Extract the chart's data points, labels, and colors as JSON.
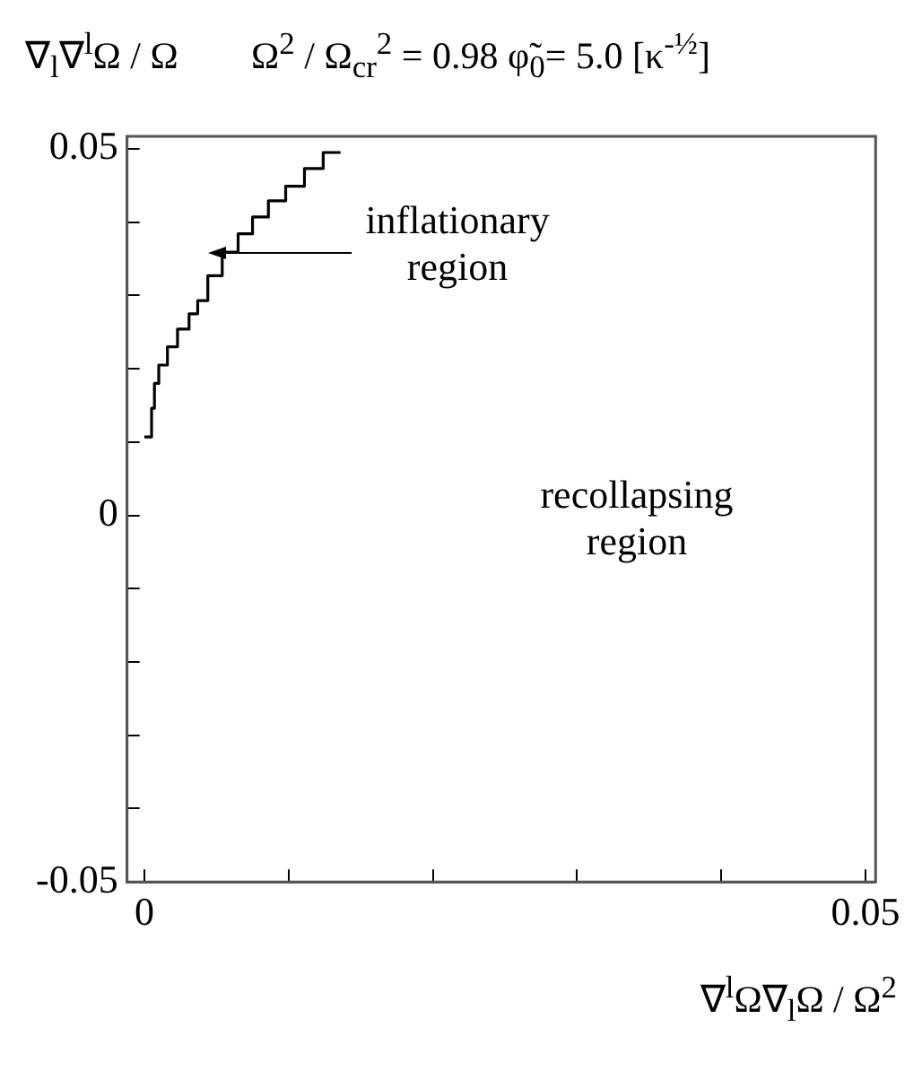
{
  "chart_data": {
    "type": "line",
    "title": "Ω$^{2}$ / Ω$_{cr}$$^{2}$ = 0.98      φ̃$_{0}$= 5.0  [κ$^{-½}$]",
    "xlabel": "∇$^{l}$Ω∇$_{l}$Ω / Ω$^{2}$",
    "ylabel": "∇$_{l}$∇$^{l}$Ω / Ω",
    "x": [
      0,
      0.0005,
      0.0005,
      0.0007,
      0.0007,
      0.001,
      0.001,
      0.0016,
      0.0016,
      0.0023,
      0.0023,
      0.0031,
      0.0031,
      0.0037,
      0.0037,
      0.0044,
      0.0044,
      0.0054,
      0.0054,
      0.0065,
      0.0065,
      0.0075,
      0.0075,
      0.0086,
      0.0086,
      0.0098,
      0.0098,
      0.0111,
      0.0111,
      0.0124,
      0.0124,
      0.0136
    ],
    "series": [
      {
        "color": "#000000",
        "values": [
          0.0107,
          0.0107,
          0.0146,
          0.0146,
          0.018,
          0.018,
          0.0205,
          0.0205,
          0.023,
          0.023,
          0.0254,
          0.0254,
          0.0275,
          0.0275,
          0.0293,
          0.0293,
          0.0327,
          0.0327,
          0.0359,
          0.0359,
          0.0384,
          0.0384,
          0.0407,
          0.0407,
          0.0429,
          0.0429,
          0.0449,
          0.0449,
          0.0473,
          0.0473,
          0.0495,
          0.0495
        ]
      }
    ],
    "xlim": [
      -0.0012,
      0.0507
    ],
    "ylim": [
      -0.05,
      0.0517
    ],
    "xticks": [
      0,
      {
        "value": 0.01,
        "label": null
      },
      {
        "value": 0.02,
        "label": null
      },
      {
        "value": 0.03,
        "label": null
      },
      {
        "value": 0.04,
        "label": null
      },
      0.05
    ],
    "yticks": [
      -0.05,
      {
        "value": -0.04,
        "label": null
      },
      {
        "value": -0.03,
        "label": null
      },
      {
        "value": -0.02,
        "label": null
      },
      {
        "value": -0.01,
        "label": null
      },
      0,
      {
        "value": 0.01,
        "label": null
      },
      {
        "value": 0.02,
        "label": null
      },
      {
        "value": 0.03,
        "label": null
      },
      {
        "value": 0.04,
        "label": null
      },
      0.05
    ],
    "annotations": [
      "inflationary region",
      "recollapsing region"
    ],
    "grid": false,
    "legend": false,
    "marker": "none",
    "line_style": "solid"
  }
}
